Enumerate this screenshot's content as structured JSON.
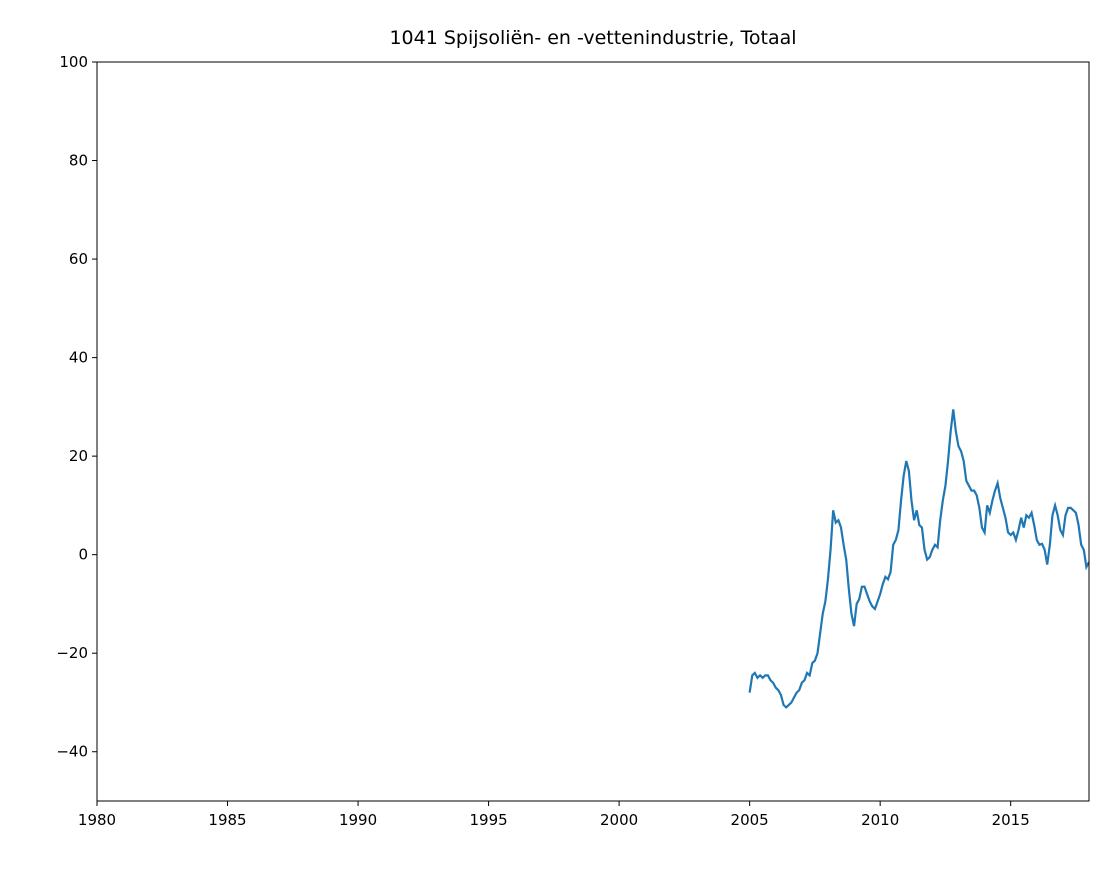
{
  "chart_data": {
    "type": "line",
    "title": "1041 Spijsoliën- en -vettenindustrie, Totaal",
    "x": [
      2005.0,
      2005.1,
      2005.2,
      2005.3,
      2005.4,
      2005.5,
      2005.6,
      2005.7,
      2005.8,
      2005.9,
      2006.0,
      2006.1,
      2006.2,
      2006.3,
      2006.4,
      2006.5,
      2006.6,
      2006.7,
      2006.8,
      2006.9,
      2007.0,
      2007.1,
      2007.2,
      2007.3,
      2007.4,
      2007.5,
      2007.6,
      2007.7,
      2007.8,
      2007.9,
      2008.0,
      2008.1,
      2008.2,
      2008.3,
      2008.4,
      2008.5,
      2008.6,
      2008.7,
      2008.8,
      2008.9,
      2009.0,
      2009.1,
      2009.2,
      2009.3,
      2009.4,
      2009.5,
      2009.6,
      2009.7,
      2009.8,
      2009.9,
      2010.0,
      2010.1,
      2010.2,
      2010.3,
      2010.4,
      2010.5,
      2010.6,
      2010.7,
      2010.8,
      2010.9,
      2011.0,
      2011.1,
      2011.2,
      2011.3,
      2011.4,
      2011.5,
      2011.6,
      2011.7,
      2011.8,
      2011.9,
      2012.0,
      2012.1,
      2012.2,
      2012.3,
      2012.4,
      2012.5,
      2012.6,
      2012.7,
      2012.8,
      2012.9,
      2013.0,
      2013.1,
      2013.2,
      2013.3,
      2013.4,
      2013.5,
      2013.6,
      2013.7,
      2013.8,
      2013.9,
      2014.0,
      2014.1,
      2014.2,
      2014.3,
      2014.4,
      2014.5,
      2014.6,
      2014.7,
      2014.8,
      2014.9,
      2015.0,
      2015.1,
      2015.2,
      2015.3,
      2015.4,
      2015.5,
      2015.6,
      2015.7,
      2015.8,
      2015.9,
      2016.0,
      2016.1,
      2016.2,
      2016.3,
      2016.4,
      2016.5,
      2016.6,
      2016.7,
      2016.8,
      2016.9,
      2017.0,
      2017.1,
      2017.2,
      2017.3,
      2017.4,
      2017.5,
      2017.6,
      2017.7,
      2017.8,
      2017.9,
      2018.0
    ],
    "series": [
      {
        "color": "#1f77b4",
        "values": [
          -28,
          -24.5,
          -24,
          -25,
          -24.5,
          -25,
          -24.5,
          -24.5,
          -25.5,
          -26,
          -27,
          -27.5,
          -28.5,
          -30.5,
          -31,
          -30.5,
          -30,
          -29,
          -28,
          -27.5,
          -26,
          -25.5,
          -24,
          -24.5,
          -22,
          -21.5,
          -20,
          -16,
          -12,
          -9.5,
          -5,
          1,
          9,
          6.5,
          7,
          5.5,
          2,
          -1,
          -7,
          -12,
          -14.5,
          -10,
          -9,
          -6.5,
          -6.5,
          -8,
          -9.5,
          -10.5,
          -11,
          -9.5,
          -8,
          -6,
          -4.5,
          -5,
          -3.5,
          2,
          3,
          5,
          11,
          16,
          19,
          17,
          11,
          7,
          9,
          6,
          5.5,
          1,
          -1,
          -0.5,
          1,
          2,
          1.5,
          7,
          11,
          14,
          19,
          25,
          29.5,
          25,
          22,
          21,
          19,
          15,
          14,
          13,
          13,
          12,
          9.5,
          5.5,
          4.5,
          10,
          8.5,
          11,
          13,
          14.5,
          11.5,
          9.5,
          7.5,
          4.5,
          4,
          4.5,
          3,
          5,
          7.5,
          5.5,
          8,
          7.5,
          8.5,
          6,
          3,
          2,
          2.2,
          1,
          -2,
          2,
          8,
          10,
          8,
          5,
          4,
          8,
          9.5,
          9.5,
          9,
          8.5,
          6,
          2,
          1,
          -2.5,
          -1.5
        ]
      }
    ],
    "xlim": [
      1980,
      2018
    ],
    "xticks": [
      1980,
      1985,
      1990,
      1995,
      2000,
      2005,
      2010,
      2015
    ],
    "ylim": [
      -50,
      100
    ],
    "yticks": [
      {
        "value": -40,
        "label": "−40"
      },
      {
        "value": -20,
        "label": "−20"
      },
      0,
      20,
      40,
      60,
      80,
      100
    ]
  }
}
